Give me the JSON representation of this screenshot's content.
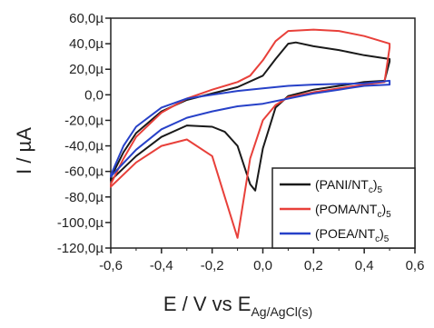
{
  "chart_data": {
    "type": "line",
    "xlabel": "E / V vs E",
    "xlabel_sub": "Ag/AgCl(s)",
    "ylabel": "I / µA",
    "xlim": [
      -0.6,
      0.6
    ],
    "ylim": [
      -120,
      60
    ],
    "x_ticks": [
      "-0,6",
      "-0,4",
      "-0,2",
      "0,0",
      "0,2",
      "0,4",
      "0,6"
    ],
    "x_tick_values": [
      -0.6,
      -0.4,
      -0.2,
      0.0,
      0.2,
      0.4,
      0.6
    ],
    "y_ticks": [
      "60,0µ",
      "40,0µ",
      "20,0µ",
      "0,0",
      "-20,0µ",
      "-40,0µ",
      "-60,0µ",
      "-80,0µ",
      "-100,0µ",
      "-120,0µ"
    ],
    "y_tick_values": [
      60,
      40,
      20,
      0,
      -20,
      -40,
      -60,
      -80,
      -100,
      -120
    ],
    "legend_position": "bottom-right",
    "series": [
      {
        "name": "(PANI/NT",
        "name_sub": "c",
        "name_suffix": ")",
        "name_sub2": "5",
        "color": "#1a1a1a",
        "points": [
          [
            -0.6,
            -65
          ],
          [
            -0.55,
            -45
          ],
          [
            -0.5,
            -30
          ],
          [
            -0.4,
            -13
          ],
          [
            -0.3,
            -4
          ],
          [
            -0.2,
            1
          ],
          [
            -0.1,
            6
          ],
          [
            0.0,
            15
          ],
          [
            0.05,
            28
          ],
          [
            0.1,
            40
          ],
          [
            0.13,
            41
          ],
          [
            0.2,
            38
          ],
          [
            0.3,
            35
          ],
          [
            0.4,
            31
          ],
          [
            0.5,
            28
          ],
          [
            0.5,
            26
          ],
          [
            0.48,
            11
          ],
          [
            0.4,
            10
          ],
          [
            0.3,
            7
          ],
          [
            0.2,
            4
          ],
          [
            0.1,
            -1
          ],
          [
            0.05,
            -10
          ],
          [
            0.0,
            -42
          ],
          [
            -0.03,
            -75
          ],
          [
            -0.05,
            -70
          ],
          [
            -0.1,
            -40
          ],
          [
            -0.15,
            -29
          ],
          [
            -0.2,
            -25
          ],
          [
            -0.3,
            -24
          ],
          [
            -0.4,
            -33
          ],
          [
            -0.5,
            -48
          ],
          [
            -0.6,
            -67
          ]
        ]
      },
      {
        "name": "(POMA/NT",
        "name_sub": "c",
        "name_suffix": ")",
        "name_sub2": "5",
        "color": "#e8403a",
        "points": [
          [
            -0.6,
            -70
          ],
          [
            -0.55,
            -50
          ],
          [
            -0.5,
            -33
          ],
          [
            -0.4,
            -14
          ],
          [
            -0.3,
            -3
          ],
          [
            -0.2,
            4
          ],
          [
            -0.1,
            10
          ],
          [
            -0.05,
            15
          ],
          [
            0.0,
            27
          ],
          [
            0.05,
            42
          ],
          [
            0.1,
            50
          ],
          [
            0.2,
            51
          ],
          [
            0.3,
            50
          ],
          [
            0.4,
            46
          ],
          [
            0.5,
            40
          ],
          [
            0.5,
            37
          ],
          [
            0.48,
            10
          ],
          [
            0.4,
            8
          ],
          [
            0.3,
            5
          ],
          [
            0.2,
            2
          ],
          [
            0.1,
            -2
          ],
          [
            0.05,
            -8
          ],
          [
            0.0,
            -20
          ],
          [
            -0.05,
            -50
          ],
          [
            -0.1,
            -112
          ],
          [
            -0.15,
            -80
          ],
          [
            -0.2,
            -48
          ],
          [
            -0.3,
            -35
          ],
          [
            -0.4,
            -40
          ],
          [
            -0.5,
            -53
          ],
          [
            -0.6,
            -72
          ]
        ]
      },
      {
        "name": "(POEA/NT",
        "name_sub": "c",
        "name_suffix": ")",
        "name_sub2": "5",
        "color": "#2741c8",
        "points": [
          [
            -0.6,
            -63
          ],
          [
            -0.55,
            -40
          ],
          [
            -0.5,
            -25
          ],
          [
            -0.4,
            -10
          ],
          [
            -0.3,
            -3
          ],
          [
            -0.2,
            0
          ],
          [
            -0.1,
            3
          ],
          [
            0.0,
            5
          ],
          [
            0.1,
            7
          ],
          [
            0.2,
            8
          ],
          [
            0.3,
            8.5
          ],
          [
            0.4,
            9
          ],
          [
            0.5,
            11
          ],
          [
            0.5,
            8
          ],
          [
            0.4,
            7
          ],
          [
            0.3,
            4
          ],
          [
            0.2,
            1
          ],
          [
            0.1,
            -3
          ],
          [
            0.0,
            -7
          ],
          [
            -0.1,
            -9
          ],
          [
            -0.2,
            -13
          ],
          [
            -0.3,
            -18
          ],
          [
            -0.4,
            -27
          ],
          [
            -0.5,
            -43
          ],
          [
            -0.6,
            -64
          ]
        ]
      }
    ]
  }
}
